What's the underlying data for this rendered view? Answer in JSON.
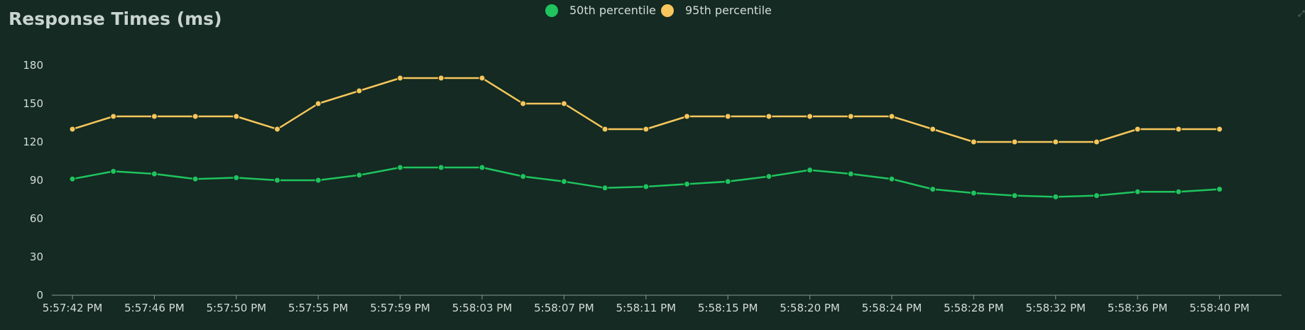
{
  "chart_data": {
    "type": "line",
    "title": "Response Times (ms)",
    "xlabel": "",
    "ylabel": "",
    "ylim": [
      0,
      180
    ],
    "yticks": [
      0,
      30,
      60,
      90,
      120,
      150,
      180
    ],
    "grid": false,
    "legend_position": "top-center",
    "x_tick_labels": [
      "5:57:42 PM",
      "5:57:46 PM",
      "5:57:50 PM",
      "5:57:55 PM",
      "5:57:59 PM",
      "5:58:03 PM",
      "5:58:07 PM",
      "5:58:11 PM",
      "5:58:15 PM",
      "5:58:20 PM",
      "5:58:24 PM",
      "5:58:28 PM",
      "5:58:32 PM",
      "5:58:36 PM",
      "5:58:40 PM"
    ],
    "series": [
      {
        "name": "50th percentile",
        "color": "#1fc45e",
        "values": [
          91,
          97,
          95,
          91,
          92,
          90,
          90,
          94,
          100,
          100,
          100,
          93,
          89,
          84,
          85,
          87,
          89,
          93,
          98,
          95,
          91,
          83,
          80,
          78,
          77,
          78,
          81,
          81,
          83
        ]
      },
      {
        "name": "95th percentile",
        "color": "#f7c65c",
        "values": [
          130,
          140,
          140,
          140,
          140,
          130,
          150,
          160,
          170,
          170,
          170,
          150,
          150,
          130,
          130,
          140,
          140,
          140,
          140,
          140,
          140,
          130,
          120,
          120,
          120,
          120,
          130,
          130,
          130
        ]
      }
    ]
  },
  "colors": {
    "background": "#142a22",
    "axis": "#8a9a93",
    "text": "#d4dcd8"
  }
}
